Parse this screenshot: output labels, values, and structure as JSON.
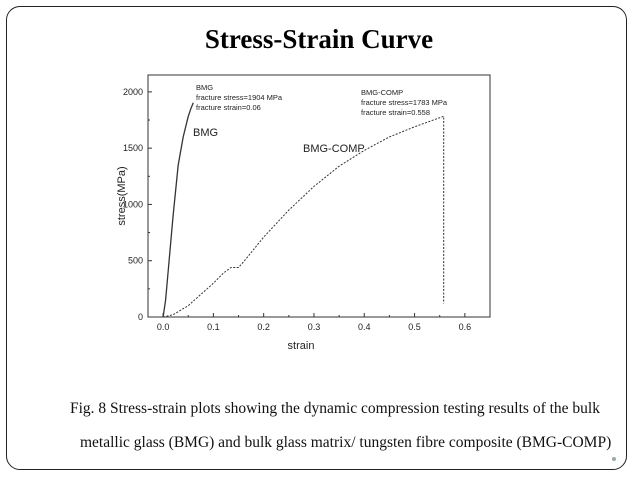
{
  "title": "Stress-Strain Curve",
  "caption": {
    "line1": "Fig. 8 Stress-strain plots showing the dynamic compression testing results of the bulk",
    "line2": "metallic glass (BMG) and bulk glass matrix/ tungsten fibre composite (BMG-COMP)"
  },
  "chart_data": {
    "type": "line",
    "xlabel": "strain",
    "ylabel": "stress(MPa)",
    "xlim": [
      -0.03,
      0.65
    ],
    "ylim": [
      0,
      2150
    ],
    "xticks": [
      "0.0",
      "0.1",
      "0.2",
      "0.3",
      "0.4",
      "0.5",
      "0.6"
    ],
    "xtick_values": [
      0.0,
      0.1,
      0.2,
      0.3,
      0.4,
      0.5,
      0.6
    ],
    "yticks": [
      "0",
      "500",
      "1000",
      "1500",
      "2000"
    ],
    "ytick_values": [
      0,
      500,
      1000,
      1500,
      2000
    ],
    "grid": false,
    "series": [
      {
        "name": "BMG",
        "style": "solid",
        "color": "#333333",
        "x": [
          0.0,
          0.005,
          0.01,
          0.02,
          0.03,
          0.04,
          0.05,
          0.055,
          0.06
        ],
        "y": [
          0,
          150,
          400,
          900,
          1350,
          1600,
          1780,
          1850,
          1904
        ]
      },
      {
        "name": "BMG-COMP",
        "style": "dashed",
        "color": "#333333",
        "x": [
          0.0,
          0.02,
          0.05,
          0.08,
          0.1,
          0.12,
          0.135,
          0.14,
          0.15,
          0.16,
          0.2,
          0.25,
          0.3,
          0.35,
          0.4,
          0.45,
          0.5,
          0.558,
          0.558
        ],
        "y": [
          0,
          20,
          100,
          220,
          300,
          390,
          440,
          440,
          440,
          490,
          710,
          950,
          1160,
          1340,
          1480,
          1600,
          1690,
          1783,
          120
        ]
      }
    ],
    "annotations": [
      {
        "id": "bmg-info",
        "lines": [
          "BMG",
          "fracture stress=1904 MPa",
          "fracture strain=0.06"
        ]
      },
      {
        "id": "comp-info",
        "lines": [
          "BMG-COMP",
          "fracture stress=1783 MPa",
          "fracture strain=0.558"
        ]
      },
      {
        "id": "bmg-label",
        "lines": [
          "BMG"
        ]
      },
      {
        "id": "comp-label",
        "lines": [
          "BMG-COMP"
        ]
      }
    ]
  }
}
